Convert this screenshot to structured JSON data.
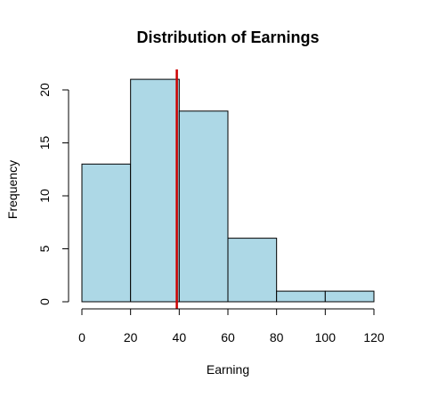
{
  "chart_data": {
    "type": "bar",
    "subtype": "histogram",
    "title": "Distribution of Earnings",
    "xlabel": "Earning",
    "ylabel": "Frequency",
    "bins": [
      {
        "start": 0,
        "end": 20,
        "count": 13
      },
      {
        "start": 20,
        "end": 40,
        "count": 21
      },
      {
        "start": 40,
        "end": 60,
        "count": 18
      },
      {
        "start": 60,
        "end": 80,
        "count": 6
      },
      {
        "start": 80,
        "end": 100,
        "count": 1
      },
      {
        "start": 100,
        "end": 120,
        "count": 1
      }
    ],
    "xlim": [
      0,
      120
    ],
    "ylim": [
      0,
      21
    ],
    "x_ticks": [
      "0",
      "20",
      "40",
      "60",
      "80",
      "100",
      "120"
    ],
    "y_ticks": [
      "0",
      "5",
      "10",
      "15",
      "20"
    ],
    "reference_line": {
      "x": 39
    },
    "grid": false,
    "legend": "none",
    "colors": {
      "bar_fill": "#add8e6",
      "bar_stroke": "#000000",
      "reference_line": "#cc0000"
    }
  }
}
